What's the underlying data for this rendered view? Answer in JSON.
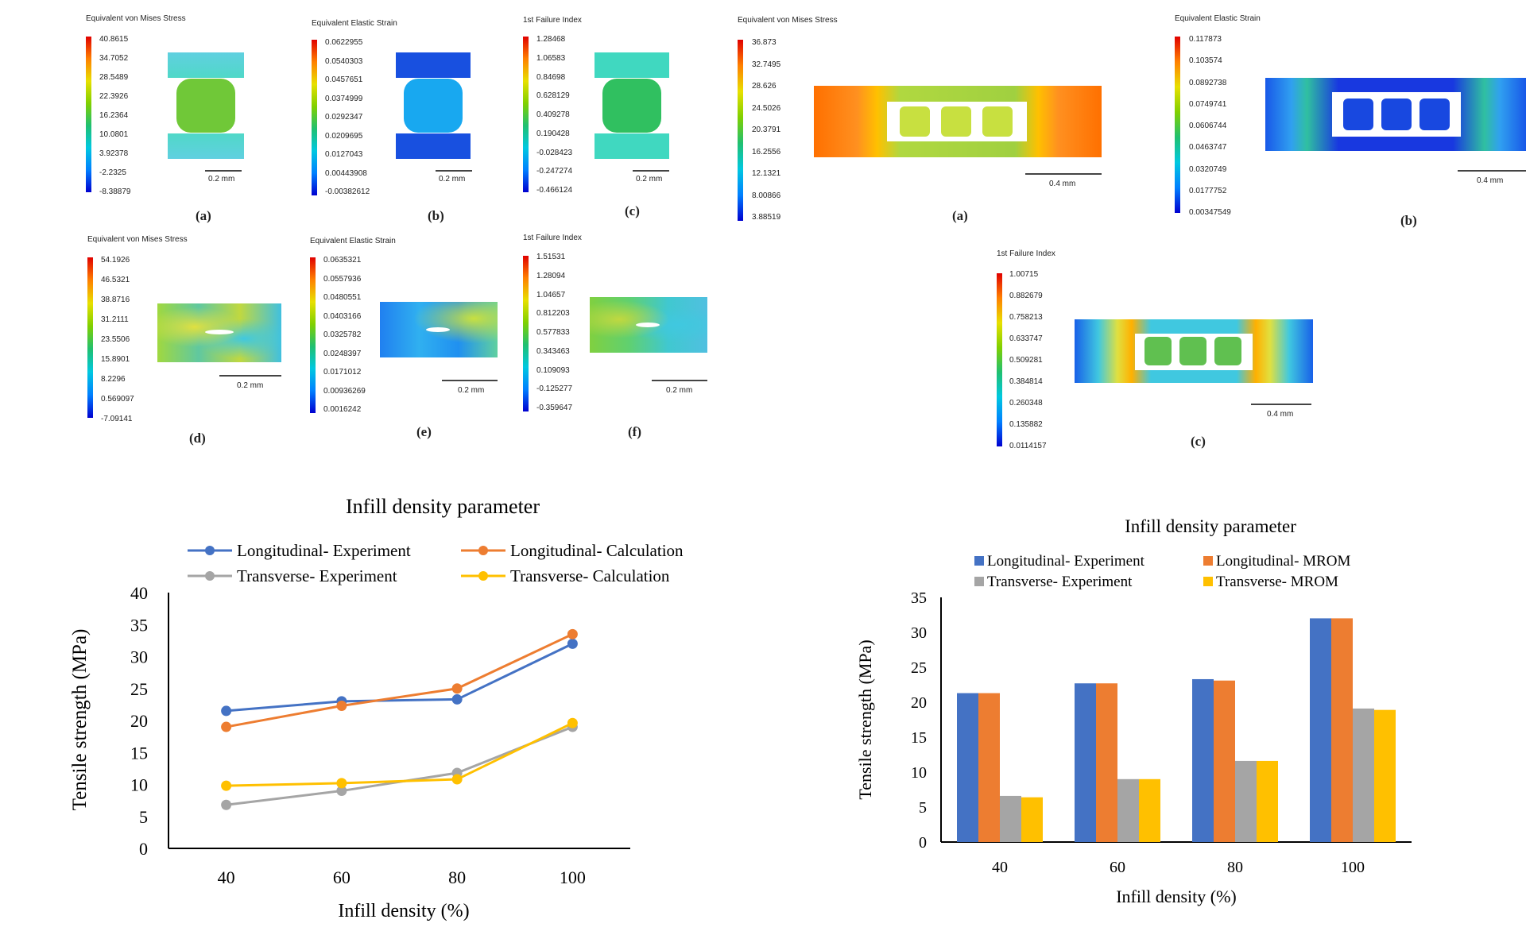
{
  "fea_left": {
    "panels": [
      {
        "title": "Equivalent von Mises Stress",
        "label": "(a)",
        "scale": "0.2 mm",
        "ticks": [
          "40.8615",
          "34.7052",
          "28.5489",
          "22.3926",
          "16.2364",
          "10.0801",
          "3.92378",
          "-2.2325",
          "-8.38879"
        ]
      },
      {
        "title": "Equivalent Elastic Strain",
        "label": "(b)",
        "scale": "0.2 mm",
        "ticks": [
          "0.0622955",
          "0.0540303",
          "0.0457651",
          "0.0374999",
          "0.0292347",
          "0.0209695",
          "0.0127043",
          "0.00443908",
          "-0.00382612"
        ]
      },
      {
        "title": "1st Failure Index",
        "label": "(c)",
        "scale": "0.2 mm",
        "ticks": [
          "1.28468",
          "1.06583",
          "0.84698",
          "0.628129",
          "0.409278",
          "0.190428",
          "-0.028423",
          "-0.247274",
          "-0.466124"
        ]
      },
      {
        "title": "Equivalent von Mises Stress",
        "label": "(d)",
        "scale": "0.2 mm",
        "ticks": [
          "54.1926",
          "46.5321",
          "38.8716",
          "31.2111",
          "23.5506",
          "15.8901",
          "8.2296",
          "0.569097",
          "-7.09141"
        ]
      },
      {
        "title": "Equivalent Elastic Strain",
        "label": "(e)",
        "scale": "0.2 mm",
        "ticks": [
          "0.0635321",
          "0.0557936",
          "0.0480551",
          "0.0403166",
          "0.0325782",
          "0.0248397",
          "0.0171012",
          "0.00936269",
          "0.0016242"
        ]
      },
      {
        "title": "1st Failure Index",
        "label": "(f)",
        "scale": "0.2 mm",
        "ticks": [
          "1.51531",
          "1.28094",
          "1.04657",
          "0.812203",
          "0.577833",
          "0.343463",
          "0.109093",
          "-0.125277",
          "-0.359647"
        ]
      }
    ]
  },
  "fea_right": {
    "panels": [
      {
        "title": "Equivalent von Mises Stress",
        "label": "(a)",
        "scale": "0.4 mm",
        "ticks": [
          "36.873",
          "32.7495",
          "28.626",
          "24.5026",
          "20.3791",
          "16.2556",
          "12.1321",
          "8.00866",
          "3.88519"
        ]
      },
      {
        "title": "Equivalent Elastic Strain",
        "label": "(b)",
        "scale": "0.4 mm",
        "ticks": [
          "0.117873",
          "0.103574",
          "0.0892738",
          "0.0749741",
          "0.0606744",
          "0.0463747",
          "0.0320749",
          "0.0177752",
          "0.00347549"
        ]
      },
      {
        "title": "1st Failure Index",
        "label": "(c)",
        "scale": "0.4 mm",
        "ticks": [
          "1.00715",
          "0.882679",
          "0.758213",
          "0.633747",
          "0.509281",
          "0.384814",
          "0.260348",
          "0.135882",
          "0.0114157"
        ]
      }
    ]
  },
  "chart_data": [
    {
      "type": "line",
      "title": "Infill density parameter",
      "xlabel": "Infill density (%)",
      "ylabel": "Tensile strength (MPa)",
      "x": [
        40,
        60,
        80,
        100
      ],
      "ylim": [
        0,
        40
      ],
      "yticks": [
        "0",
        "5",
        "10",
        "15",
        "20",
        "25",
        "30",
        "35",
        "40"
      ],
      "legend_position": "top",
      "grid": false,
      "series": [
        {
          "name": "Longitudinal- Experiment",
          "color": "#4472C4",
          "values": [
            21.5,
            23,
            23.3,
            32
          ]
        },
        {
          "name": "Longitudinal- Calculation",
          "color": "#ED7D31",
          "values": [
            19,
            22.3,
            25,
            33.5
          ]
        },
        {
          "name": "Transverse- Experiment",
          "color": "#A5A5A5",
          "values": [
            6.8,
            9,
            11.8,
            19
          ]
        },
        {
          "name": "Transverse- Calculation",
          "color": "#FFC000",
          "values": [
            9.8,
            10.2,
            10.8,
            19.6
          ]
        }
      ]
    },
    {
      "type": "bar",
      "title": "Infill density parameter",
      "xlabel": "Infill density (%)",
      "ylabel": "Tensile strength (MPa)",
      "categories": [
        "40",
        "60",
        "80",
        "100"
      ],
      "ylim": [
        0,
        35
      ],
      "yticks": [
        "0",
        "5",
        "10",
        "15",
        "20",
        "25",
        "30",
        "35"
      ],
      "legend_position": "top",
      "grid": false,
      "series": [
        {
          "name": "Longitudinal- Experiment",
          "color": "#4472C4",
          "values": [
            21.3,
            22.7,
            23.3,
            32
          ]
        },
        {
          "name": "Longitudinal- MROM",
          "color": "#ED7D31",
          "values": [
            21.3,
            22.7,
            23.1,
            32
          ]
        },
        {
          "name": "Transverse- Experiment",
          "color": "#A5A5A5",
          "values": [
            6.6,
            9,
            11.6,
            19.1
          ]
        },
        {
          "name": "Transverse- MROM",
          "color": "#FFC000",
          "values": [
            6.4,
            9,
            11.6,
            18.9
          ]
        }
      ]
    }
  ]
}
